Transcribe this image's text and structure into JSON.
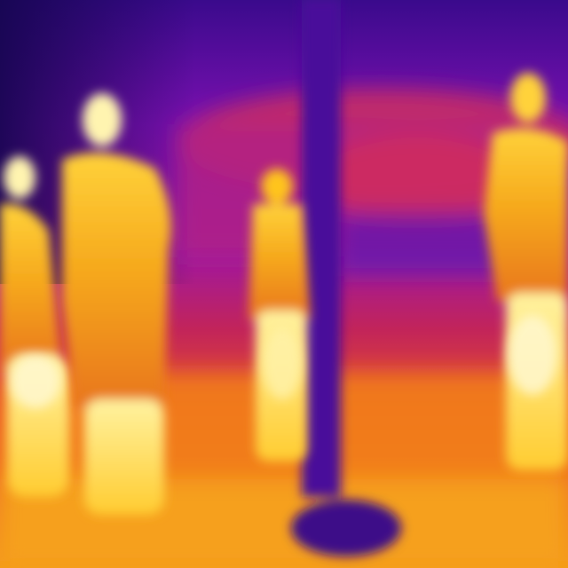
{
  "image": {
    "kind": "thermal-camera-photo",
    "description_visible_text": "",
    "palette": {
      "cold_deep": "#1c0a66",
      "cold": "#3a0a8c",
      "cool": "#7a10b0",
      "mid": "#b21a9e",
      "warm": "#e0303c",
      "hot": "#f07a10",
      "hotter": "#ffc41a",
      "hottest": "#fff4b0"
    }
  }
}
